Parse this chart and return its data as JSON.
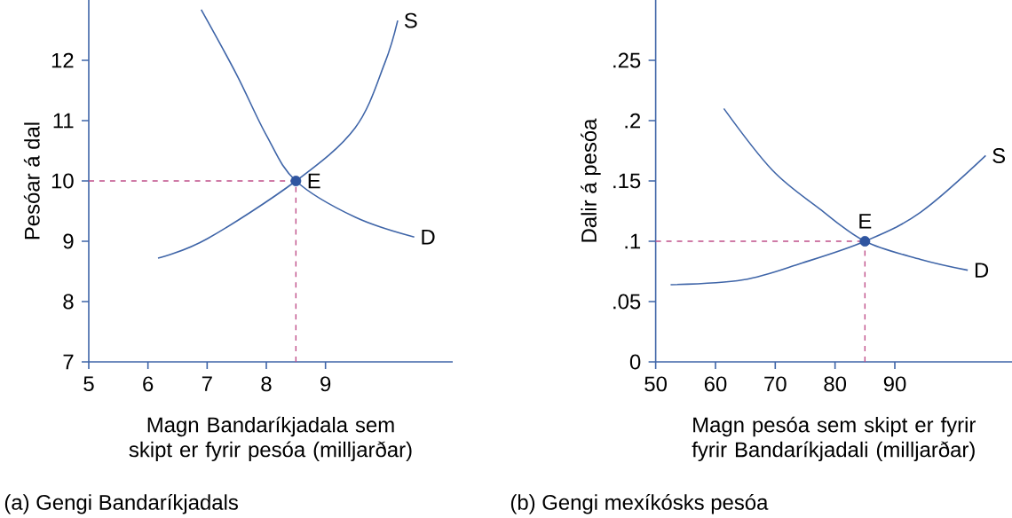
{
  "chart_data": [
    {
      "type": "line",
      "title": "(a) Gengi Bandaríkjadals",
      "xlabel": "Magn Bandaríkjadala sem skipt er fyrir pesóa (milljarðar)",
      "ylabel": "Pesóar á dal",
      "xlim": [
        5,
        11.15
      ],
      "ylim": [
        7,
        13
      ],
      "xticks": [
        5,
        6,
        7,
        8,
        9
      ],
      "yticks": [
        7,
        8,
        9,
        10,
        11,
        12
      ],
      "grid": false,
      "series": [
        {
          "name": "S",
          "color": "#3f65a8",
          "x": [
            6.17,
            7.0,
            8.5,
            9.5,
            10.0,
            10.22
          ],
          "values": [
            8.72,
            9.04,
            10,
            10.88,
            11.95,
            12.66
          ]
        },
        {
          "name": "D",
          "color": "#3f65a8",
          "x": [
            6.9,
            7.5,
            8.0,
            8.5,
            9.5,
            10.5
          ],
          "values": [
            12.84,
            11.76,
            10.76,
            10,
            9.4,
            9.07
          ]
        },
        {
          "name": "E",
          "type": "scatter",
          "color": "#2f55a0",
          "x": [
            8.5
          ],
          "values": [
            10
          ]
        }
      ],
      "ref_lines": [
        {
          "axis": "x",
          "value": 8.5,
          "color": "#c0508a",
          "line_style": "dashed"
        },
        {
          "axis": "y",
          "value": 10,
          "color": "#c0508a",
          "line_style": "dashed"
        }
      ]
    },
    {
      "type": "line",
      "title": "(b) Gengi mexíkósks pesóa",
      "xlabel": "Magn pesóa sem skipt er fyrir fyrir Bandaríkjadali (milljarðar)",
      "ylabel": "Dalir á pesóa",
      "xlim": [
        50,
        109.6
      ],
      "ylim": [
        0,
        0.3
      ],
      "xticks": [
        50,
        60,
        70,
        80,
        90
      ],
      "yticks": [
        0,
        {
          "value": 0.05,
          "label": ".05"
        },
        {
          "value": 0.1,
          "label": ".1"
        },
        {
          "value": 0.15,
          "label": ".15"
        },
        {
          "value": 0.2,
          "label": ".2"
        },
        {
          "value": 0.25,
          "label": ".25"
        }
      ],
      "grid": false,
      "series": [
        {
          "name": "S",
          "color": "#3f65a8",
          "x": [
            52.5,
            64.6,
            74.5,
            85,
            94.3,
            105.2
          ],
          "values": [
            0.064,
            0.068,
            0.082,
            0.1,
            0.124,
            0.171
          ]
        },
        {
          "name": "D",
          "color": "#3f65a8",
          "x": [
            61.4,
            69.5,
            77.4,
            85,
            94.3,
            102.2
          ],
          "values": [
            0.21,
            0.159,
            0.127,
            0.1,
            0.085,
            0.076
          ]
        },
        {
          "name": "E",
          "type": "scatter",
          "color": "#2f55a0",
          "x": [
            85
          ],
          "values": [
            0.1
          ]
        }
      ],
      "ref_lines": [
        {
          "axis": "x",
          "value": 85,
          "color": "#c0508a",
          "line_style": "dashed"
        },
        {
          "axis": "y",
          "value": 0.1,
          "color": "#c0508a",
          "line_style": "dashed"
        }
      ]
    }
  ]
}
